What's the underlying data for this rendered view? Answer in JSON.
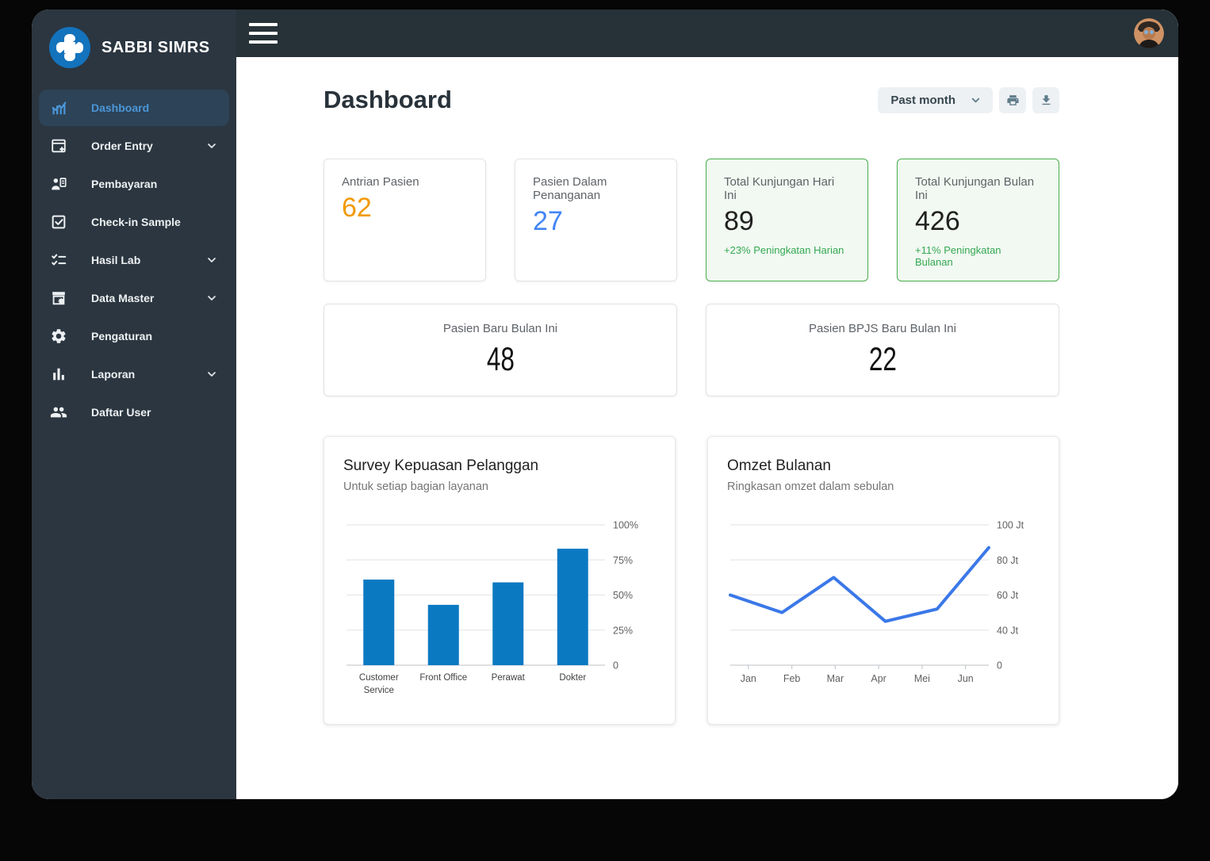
{
  "app": {
    "brand": "SABBI SIMRS"
  },
  "topbar": {
    "menu_icon": "hamburger-icon",
    "avatar_icon": "user-avatar"
  },
  "sidebar": {
    "items": [
      {
        "label": "Dashboard",
        "icon": "analytics-icon",
        "active": true,
        "expandable": false
      },
      {
        "label": "Order Entry",
        "icon": "order-entry-icon",
        "active": false,
        "expandable": true
      },
      {
        "label": "Pembayaran",
        "icon": "payment-icon",
        "active": false,
        "expandable": false
      },
      {
        "label": "Check-in Sample",
        "icon": "checkin-icon",
        "active": false,
        "expandable": false
      },
      {
        "label": "Hasil Lab",
        "icon": "lab-result-icon",
        "active": false,
        "expandable": true
      },
      {
        "label": "Data Master",
        "icon": "data-master-icon",
        "active": false,
        "expandable": true
      },
      {
        "label": "Pengaturan",
        "icon": "settings-icon",
        "active": false,
        "expandable": false
      },
      {
        "label": "Laporan",
        "icon": "report-icon",
        "active": false,
        "expandable": true
      },
      {
        "label": "Daftar User",
        "icon": "users-icon",
        "active": false,
        "expandable": false
      }
    ]
  },
  "page": {
    "title": "Dashboard"
  },
  "toolbar": {
    "range_selector_value": "Past month",
    "print_icon": "printer-icon",
    "download_icon": "download-icon"
  },
  "stat_cards": [
    {
      "label": "Antrian Pasien",
      "value": "62",
      "value_color": "#f29900",
      "variant": "plain"
    },
    {
      "label": "Pasien Dalam Penanganan",
      "value": "27",
      "value_color": "#4285f4",
      "variant": "plain"
    },
    {
      "label": "Total Kunjungan Hari Ini",
      "value": "89",
      "value_color": "#212121",
      "variant": "success",
      "delta": "+23% Peningkatan Harian"
    },
    {
      "label": "Total Kunjungan Bulan Ini",
      "value": "426",
      "value_color": "#212121",
      "variant": "success",
      "delta": "+11% Peningkatan Bulanan"
    }
  ],
  "summary_cards": [
    {
      "label": "Pasien Baru Bulan Ini",
      "value": "48"
    },
    {
      "label": "Pasien BPJS Baru Bulan Ini",
      "value": "22"
    }
  ],
  "chart_data": [
    {
      "type": "bar",
      "title": "Survey Kepuasan Pelanggan",
      "subtitle": "Untuk setiap bagian layanan",
      "categories": [
        "Customer Service",
        "Front Office",
        "Perawat",
        "Dokter"
      ],
      "values": [
        61,
        43,
        59,
        83
      ],
      "ylim": [
        0,
        100
      ],
      "yticks": [
        0,
        25,
        50,
        75,
        100
      ],
      "ytick_labels": [
        "0",
        "25%",
        "50%",
        "75%",
        "100%"
      ],
      "axis_side": "right",
      "grid": true,
      "bar_color": "#0b79c2"
    },
    {
      "type": "line",
      "title": "Omzet Bulanan",
      "subtitle": "Ringkasan omzet dalam sebulan",
      "x": [
        "Jan",
        "Feb",
        "Mar",
        "Apr",
        "Mei",
        "Jun"
      ],
      "values": [
        60,
        50,
        70,
        45,
        52,
        87
      ],
      "yticks": [
        0,
        40,
        60,
        80,
        100
      ],
      "ytick_labels": [
        "0",
        "40 Jt",
        "60 Jt",
        "80 Jt",
        "100 Jt"
      ],
      "tick_spacing": "uniform",
      "axis_side": "right",
      "grid": true,
      "line_color": "#3b78e8"
    }
  ],
  "colors": {
    "sidebar_bg": "#2b3640",
    "topbar_bg": "#263238",
    "active_item_text": "#4b96d8",
    "success_green": "#34a853",
    "success_border": "#4caf50"
  }
}
